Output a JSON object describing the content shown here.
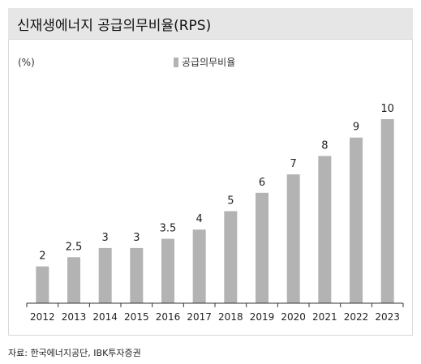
{
  "header": {
    "title": "신재생에너지 공급의무비율(RPS)"
  },
  "footer": {
    "source": "자료: 한국에너지공단, IBK투자증권"
  },
  "chart_data": {
    "type": "bar",
    "title": "신재생에너지 공급의무비율(RPS)",
    "ylabel": "(%)",
    "xlabel": "",
    "ylim": [
      0,
      11
    ],
    "grid": false,
    "legend": {
      "position": "top-center"
    },
    "colors": {
      "bar": "#b3b3b3"
    },
    "categories": [
      "2012",
      "2013",
      "2014",
      "2015",
      "2016",
      "2017",
      "2018",
      "2019",
      "2020",
      "2021",
      "2022",
      "2023"
    ],
    "series": [
      {
        "name": "공급의무비율",
        "values": [
          2,
          2.5,
          3,
          3,
          3.5,
          4,
          5,
          6,
          7,
          8,
          9,
          10
        ],
        "labels": [
          "2",
          "2.5",
          "3",
          "3",
          "3.5",
          "4",
          "5",
          "6",
          "7",
          "8",
          "9",
          "10"
        ]
      }
    ]
  }
}
